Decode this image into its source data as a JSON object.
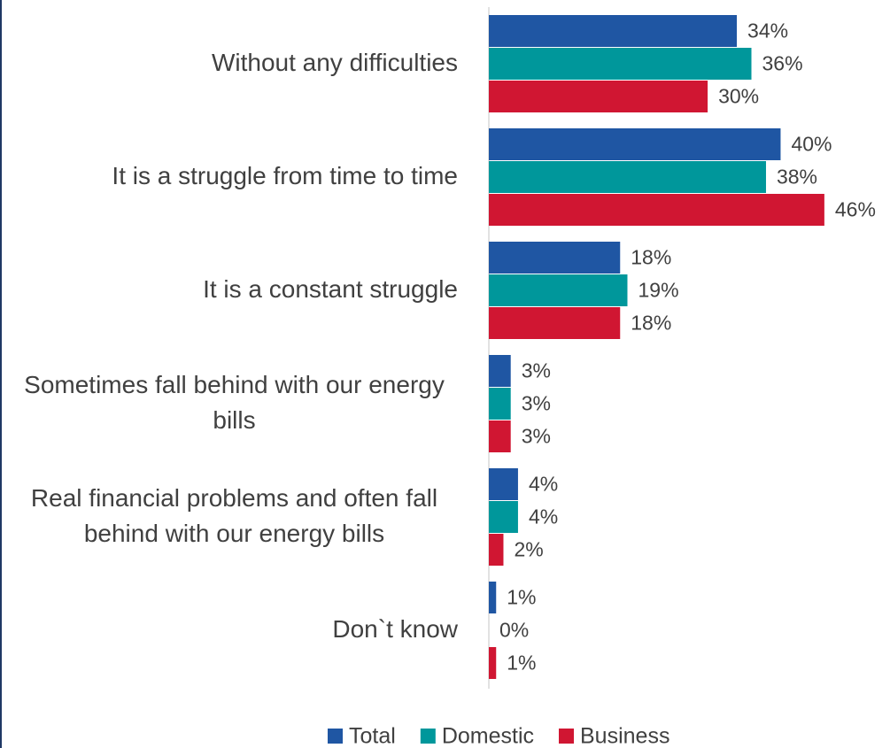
{
  "chart_data": {
    "type": "bar",
    "orientation": "horizontal",
    "categories": [
      "Without any difficulties",
      "It is a struggle from time to time",
      "It is a constant struggle",
      "Sometimes fall behind with our energy bills",
      "Real financial problems and often fall behind with our energy bills",
      "Don`t know"
    ],
    "series": [
      {
        "name": "Total",
        "color": "#1f56a3",
        "values": [
          34,
          40,
          18,
          3,
          4,
          1
        ],
        "value_labels": [
          "34%",
          "40%",
          "18%",
          "3%",
          "4%",
          "1%"
        ]
      },
      {
        "name": "Domestic",
        "color": "#00979b",
        "values": [
          36,
          38,
          19,
          3,
          4,
          0
        ],
        "value_labels": [
          "36%",
          "38%",
          "19%",
          "3%",
          "4%",
          "0%"
        ]
      },
      {
        "name": "Business",
        "color": "#d01632",
        "values": [
          30,
          46,
          18,
          3,
          2,
          1
        ],
        "value_labels": [
          "30%",
          "46%",
          "18%",
          "3%",
          "2%",
          "1%"
        ]
      }
    ],
    "xlim": [
      0,
      55
    ],
    "legend": "bottom"
  }
}
